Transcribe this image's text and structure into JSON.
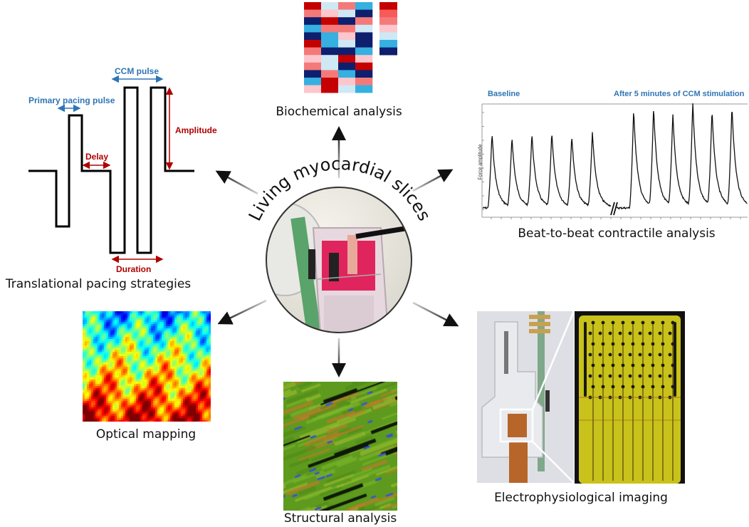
{
  "center": {
    "title": "Living myocardial slices",
    "photo_icon": "tissue-chamber-photo"
  },
  "panels": {
    "biochemical": {
      "caption": "Biochemical analysis",
      "palette": {
        "dark_red": "#c40000",
        "salmon": "#f47a7a",
        "bright_salmon": "#f85a5a",
        "pink": "#fcc6cc",
        "light_blue": "#cfe8f5",
        "cyan": "#35b0e0",
        "navy": "#0e1f6e"
      },
      "grid": [
        [
          "dark_red",
          "light_blue",
          "salmon",
          "cyan"
        ],
        [
          "salmon",
          "pink",
          "light_blue",
          "navy"
        ],
        [
          "navy",
          "dark_red",
          "navy",
          "salmon"
        ],
        [
          "cyan",
          "salmon",
          "salmon",
          "light_blue"
        ],
        [
          "navy",
          "cyan",
          "pink",
          "navy"
        ],
        [
          "dark_red",
          "cyan",
          "light_blue",
          "navy"
        ],
        [
          "salmon",
          "navy",
          "navy",
          "cyan"
        ],
        [
          "pink",
          "light_blue",
          "dark_red",
          "pink"
        ],
        [
          "salmon",
          "light_blue",
          "navy",
          "dark_red"
        ],
        [
          "navy",
          "salmon",
          "cyan",
          "navy"
        ],
        [
          "cyan",
          "dark_red",
          "pink",
          "salmon"
        ],
        [
          "pink",
          "dark_red",
          "light_blue",
          "cyan"
        ]
      ],
      "legend": [
        "dark_red",
        "bright_salmon",
        "salmon",
        "pink",
        "light_blue",
        "cyan",
        "navy"
      ]
    },
    "pacing": {
      "caption": "Translational pacing strategies",
      "labels": {
        "primary": "Primary pacing pulse",
        "ccm": "CCM pulse",
        "delay": "Delay",
        "amplitude": "Amplitude",
        "duration": "Duration"
      },
      "colors": {
        "blue": "#2e75b6",
        "red": "#b00000"
      }
    },
    "contractile": {
      "caption": "Beat-to-beat contractile analysis",
      "baseline_label": "Baseline",
      "after_label": "After 5 minutes of CCM stimulation",
      "ylabel": "Force amplitude"
    },
    "optical": {
      "caption": "Optical mapping"
    },
    "structural": {
      "caption": "Structural analysis"
    },
    "electro": {
      "caption": "Electrophysiological imaging"
    }
  },
  "chart_data": {
    "type": "line",
    "title": "",
    "ylabel": "Force amplitude",
    "xlabel": "",
    "series": [
      {
        "name": "Baseline",
        "peak_amplitudes": [
          0.7,
          0.65,
          0.68,
          0.69,
          0.66,
          0.69
        ]
      },
      {
        "name": "After 5 minutes of CCM stimulation",
        "peak_amplitudes": [
          0.92,
          0.92,
          0.85,
          0.96,
          0.89,
          0.93
        ]
      }
    ],
    "axis_break": true,
    "grid": false
  }
}
